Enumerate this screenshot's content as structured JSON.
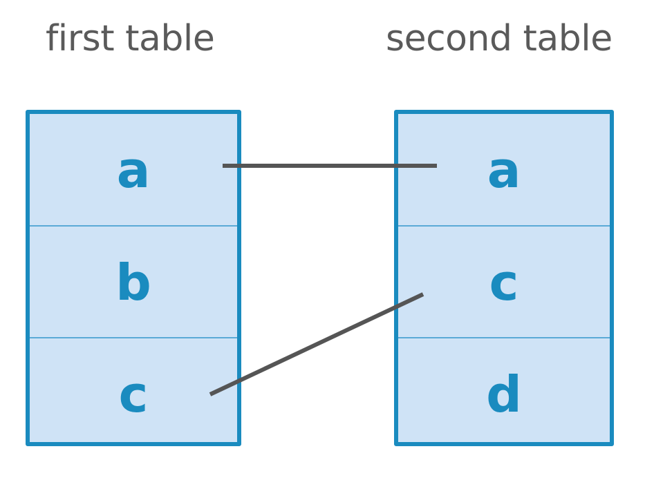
{
  "titles": {
    "first": "first table",
    "second": "second table"
  },
  "first_table": {
    "rows": [
      "a",
      "b",
      "c"
    ]
  },
  "second_table": {
    "rows": [
      "a",
      "c",
      "d"
    ]
  },
  "links": [
    {
      "from": "a",
      "to": "a"
    },
    {
      "from": "c",
      "to": "c"
    }
  ],
  "colors": {
    "border": "#1a8bbf",
    "fill": "#cfe3f6",
    "text": "#1a8bbf",
    "link": "#555555",
    "title": "#5a5a5a"
  }
}
